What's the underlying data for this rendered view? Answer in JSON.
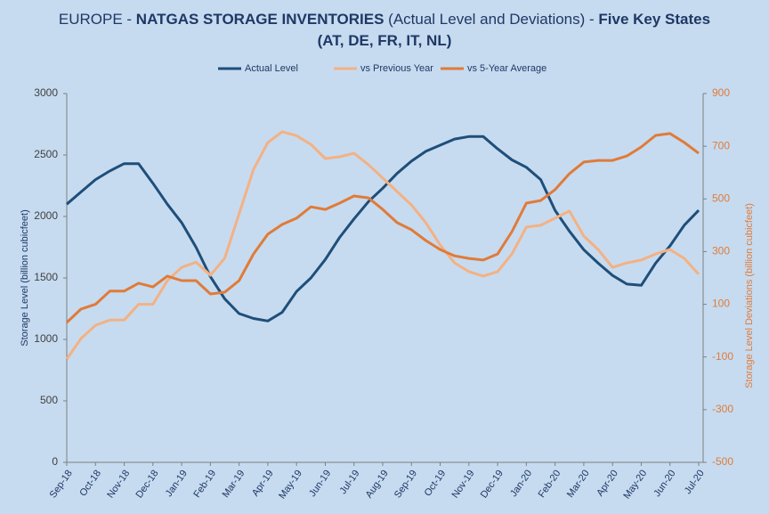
{
  "chart_data": {
    "type": "line",
    "title_parts": [
      "EUROPE - ",
      "NATGAS STORAGE INVENTORIES",
      " (Actual Level and Deviations) - ",
      "Five Key States"
    ],
    "subtitle": "(AT, DE, FR, IT, NL)",
    "y_label": "Storage Level (billion cubicfeet)",
    "y2_label": "Storage Level Deviations (billion cubicfeet)",
    "categories": [
      "Sep-18",
      null,
      "Oct-18",
      null,
      "Nov-18",
      null,
      "Dec-18",
      null,
      "Jan-19",
      null,
      "Feb-19",
      null,
      "Mar-19",
      null,
      "Apr-19",
      null,
      "May-19",
      null,
      "Jun-19",
      null,
      "Jul-19",
      null,
      "Aug-19",
      null,
      "Sep-19",
      null,
      "Oct-19",
      null,
      "Nov-19",
      null,
      "Dec-19",
      null,
      "Jan-20",
      null,
      "Feb-20",
      null,
      "Mar-20",
      null,
      "Apr-20",
      null,
      "May-20",
      null,
      "Jun-20",
      null,
      "Jul-20"
    ],
    "series": [
      {
        "name": "Actual Level",
        "color": "#1f4e79",
        "axis": "y",
        "values": [
          2100,
          2200,
          2300,
          2370,
          2430,
          2430,
          2270,
          2100,
          1950,
          1750,
          1510,
          1330,
          1210,
          1170,
          1150,
          1220,
          1390,
          1500,
          1650,
          1830,
          1980,
          2120,
          2230,
          2350,
          2450,
          2530,
          2580,
          2630,
          2650,
          2650,
          2550,
          2460,
          2400,
          2300,
          2050,
          1880,
          1730,
          1620,
          1520,
          1450,
          1440,
          1620,
          1760,
          1930,
          2050
        ]
      },
      {
        "name": "vs Previous Year",
        "color": "#f4b183",
        "axis": "y2",
        "values": [
          -108,
          -30,
          20,
          40,
          40,
          100,
          100,
          190,
          240,
          260,
          210,
          275,
          443,
          612,
          714,
          755,
          740,
          707,
          653,
          660,
          673,
          630,
          579,
          528,
          477,
          410,
          325,
          257,
          224,
          207,
          224,
          291,
          393,
          400,
          427,
          454,
          359,
          308,
          240,
          257,
          268,
          291,
          308,
          274,
          214
        ]
      },
      {
        "name": "vs 5-Year Average",
        "color": "#e07b39",
        "axis": "y2",
        "values": [
          31,
          82,
          100,
          150,
          150,
          180,
          166,
          207,
          190,
          190,
          139,
          146,
          190,
          291,
          366,
          403,
          427,
          470,
          460,
          484,
          511,
          504,
          460,
          410,
          383,
          342,
          308,
          284,
          274,
          268,
          291,
          376,
          484,
          494,
          535,
          596,
          640,
          646,
          646,
          663,
          697,
          741,
          748,
          714,
          673
        ]
      }
    ],
    "ylim": [
      0,
      3000
    ],
    "yticks": [
      0,
      500,
      1000,
      1500,
      2000,
      2500,
      3000
    ],
    "y2lim": [
      -500,
      900
    ],
    "y2ticks": [
      -500,
      -300,
      -100,
      100,
      300,
      500,
      700,
      900
    ],
    "grid": false,
    "legend": "top"
  }
}
